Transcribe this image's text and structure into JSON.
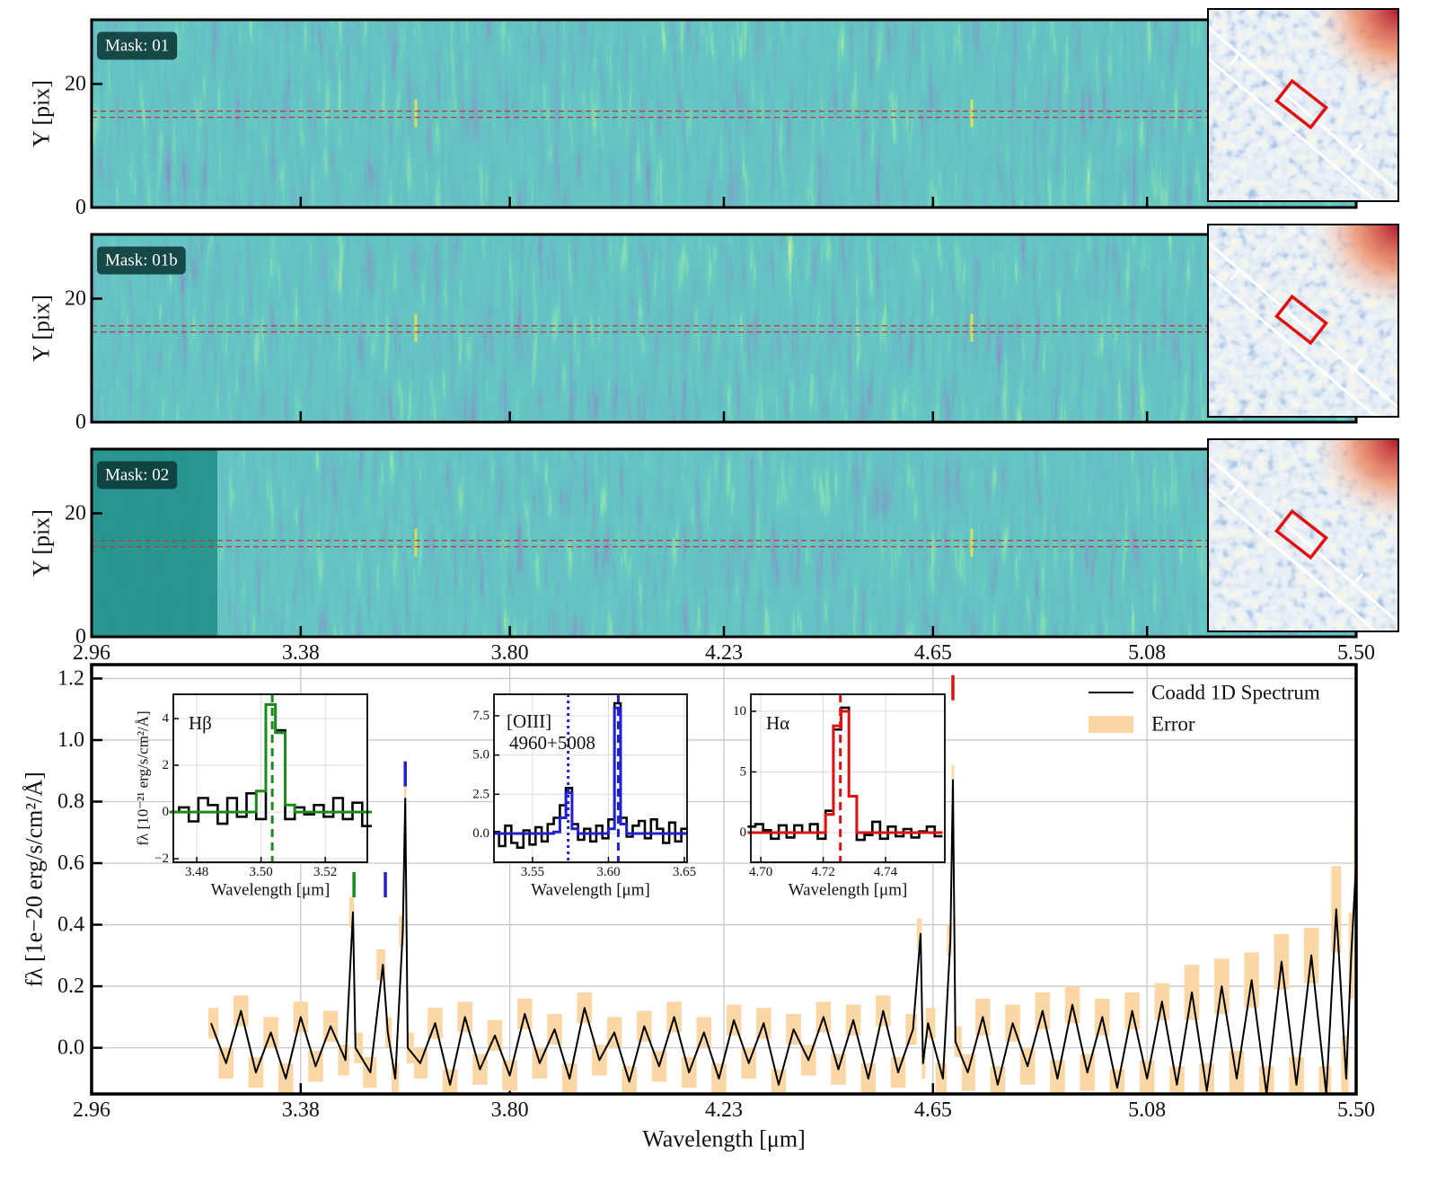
{
  "chart_data": [
    {
      "type": "spectrum2d",
      "ylabel": "Y [pix]",
      "xlim": [
        2.96,
        5.5
      ],
      "xticks": [
        2.96,
        3.38,
        {
          "value": 3.8,
          "label": "3.80"
        },
        4.23,
        4.65,
        5.08,
        {
          "value": 5.5,
          "label": "5.50"
        }
      ],
      "ylim": [
        0,
        30.4
      ],
      "yticks": [
        0,
        20
      ],
      "aperture": [
        14.6,
        15.6
      ],
      "aperture_color": "#c0392b",
      "panels": [
        {
          "label": "Mask: 01"
        },
        {
          "label": "Mask: 01b"
        },
        {
          "label": "Mask: 02"
        }
      ]
    },
    {
      "type": "line",
      "xlabel": "Wavelength [μm]",
      "ylabel": "fλ [1e−20 erg/s/cm²/Å]",
      "xlim": [
        2.96,
        5.5
      ],
      "xticks": [
        2.96,
        3.38,
        {
          "value": 3.8,
          "label": "3.80"
        },
        4.23,
        4.65,
        5.08,
        {
          "value": 5.5,
          "label": "5.50"
        }
      ],
      "ylim": [
        -0.15,
        1.245
      ],
      "yticks": [
        {
          "value": 0,
          "label": "0.0"
        },
        0.2,
        0.4,
        0.6,
        0.8,
        {
          "value": 1,
          "label": "1.0"
        },
        1.2
      ],
      "grid": true,
      "legend": "upper right",
      "x": [
        3.2,
        3.23,
        3.26,
        3.29,
        3.32,
        3.35,
        3.38,
        3.41,
        3.44,
        3.47,
        3.485,
        3.49,
        3.52,
        3.545,
        3.555,
        3.57,
        3.585,
        3.59,
        3.595,
        3.62,
        3.65,
        3.68,
        3.71,
        3.74,
        3.77,
        3.8,
        3.83,
        3.86,
        3.89,
        3.92,
        3.95,
        3.98,
        4.01,
        4.04,
        4.07,
        4.1,
        4.13,
        4.16,
        4.19,
        4.22,
        4.25,
        4.28,
        4.31,
        4.34,
        4.37,
        4.4,
        4.43,
        4.46,
        4.49,
        4.52,
        4.55,
        4.58,
        4.61,
        4.625,
        4.63,
        4.64,
        4.67,
        4.685,
        4.69,
        4.695,
        4.72,
        4.75,
        4.78,
        4.81,
        4.84,
        4.87,
        4.9,
        4.93,
        4.96,
        4.99,
        5.02,
        5.05,
        5.08,
        5.11,
        5.14,
        5.17,
        5.2,
        5.23,
        5.26,
        5.29,
        5.32,
        5.35,
        5.38,
        5.41,
        5.44,
        5.46,
        5.48,
        5.49,
        5.5
      ],
      "series": [
        {
          "name": "Coadd 1D Spectrum",
          "color": "#000000",
          "values": [
            0.08,
            -0.05,
            0.12,
            -0.08,
            0.05,
            -0.1,
            0.1,
            -0.06,
            0.07,
            -0.04,
            0.44,
            0.0,
            -0.08,
            0.27,
            0.05,
            -0.1,
            0.38,
            0.81,
            0.0,
            -0.05,
            0.08,
            -0.12,
            0.1,
            -0.07,
            0.04,
            -0.09,
            0.11,
            -0.05,
            0.06,
            -0.1,
            0.13,
            -0.04,
            0.05,
            -0.11,
            0.07,
            -0.06,
            0.1,
            -0.08,
            0.05,
            -0.1,
            0.09,
            -0.05,
            0.08,
            -0.12,
            0.06,
            -0.04,
            0.1,
            -0.07,
            0.09,
            -0.1,
            0.12,
            -0.08,
            0.06,
            0.37,
            -0.05,
            0.08,
            -0.1,
            0.35,
            0.87,
            0.02,
            -0.08,
            0.1,
            -0.12,
            0.08,
            -0.06,
            0.12,
            -0.1,
            0.14,
            -0.08,
            0.1,
            -0.13,
            0.12,
            -0.1,
            0.15,
            -0.12,
            0.18,
            -0.14,
            0.2,
            -0.1,
            0.22,
            -0.15,
            0.28,
            -0.12,
            0.3,
            -0.15,
            0.45,
            -0.1,
            0.3,
            0.6
          ]
        },
        {
          "name": "Error",
          "color": "#fbd7a5",
          "values": [
            0.05,
            0.05,
            0.05,
            0.05,
            0.05,
            0.05,
            0.05,
            0.05,
            0.05,
            0.05,
            0.05,
            0.05,
            0.05,
            0.05,
            0.05,
            0.05,
            0.05,
            0.05,
            0.05,
            0.05,
            0.05,
            0.05,
            0.05,
            0.05,
            0.05,
            0.05,
            0.05,
            0.05,
            0.05,
            0.05,
            0.05,
            0.05,
            0.05,
            0.05,
            0.05,
            0.05,
            0.05,
            0.05,
            0.05,
            0.05,
            0.05,
            0.05,
            0.05,
            0.05,
            0.05,
            0.05,
            0.05,
            0.05,
            0.05,
            0.05,
            0.05,
            0.05,
            0.05,
            0.05,
            0.05,
            0.05,
            0.05,
            0.05,
            0.05,
            0.05,
            0.06,
            0.06,
            0.06,
            0.06,
            0.06,
            0.06,
            0.06,
            0.06,
            0.06,
            0.06,
            0.06,
            0.06,
            0.06,
            0.06,
            0.06,
            0.09,
            0.09,
            0.09,
            0.09,
            0.09,
            0.09,
            0.09,
            0.09,
            0.09,
            0.09,
            0.14,
            0.14,
            0.14,
            0.14
          ]
        }
      ],
      "markers": [
        {
          "x": 3.487,
          "y": 0.53,
          "color": "#1a8a1a"
        },
        {
          "x": 3.55,
          "y": 0.53,
          "color": "#2020d0"
        },
        {
          "x": 3.59,
          "y": 0.89,
          "color": "#2020d0"
        },
        {
          "x": 4.69,
          "y": 1.17,
          "color": "#e01010"
        }
      ]
    },
    {
      "type": "step",
      "label": "Hβ",
      "xlabel": "Wavelength [μm]",
      "ylabel": "fλ [10⁻²¹ erg/s/cm²/Å]",
      "xlim": [
        3.4727,
        3.5331
      ],
      "xticks": [
        3.48,
        {
          "value": 3.5,
          "label": "3.50"
        },
        3.52
      ],
      "ylim": [
        -2.15,
        5.04
      ],
      "yticks": [
        {
          "value": -2,
          "label": "−2"
        },
        0,
        2,
        4
      ],
      "grid": true,
      "x": [
        3.473,
        3.476,
        3.479,
        3.482,
        3.485,
        3.488,
        3.491,
        3.494,
        3.497,
        3.5,
        3.503,
        3.506,
        3.509,
        3.512,
        3.515,
        3.518,
        3.521,
        3.524,
        3.527,
        3.53,
        3.533
      ],
      "series": [
        {
          "color": "#000000",
          "values": [
            0.0,
            0.2,
            -0.4,
            0.6,
            0.3,
            -0.5,
            0.6,
            -0.2,
            0.8,
            -0.3,
            4.6,
            3.5,
            -0.3,
            0.2,
            -0.1,
            0.3,
            -0.2,
            0.6,
            -0.3,
            0.4,
            -0.6
          ]
        },
        {
          "color": "#1a8a1a",
          "values": [
            0,
            0,
            0,
            0,
            0,
            0,
            0,
            0,
            0,
            0.9,
            4.6,
            3.4,
            0.3,
            0,
            0,
            0,
            0,
            0,
            0,
            0,
            0
          ]
        }
      ],
      "vlines": [
        {
          "x": 3.5035,
          "color": "#1a8a1a",
          "dash": "9 6"
        }
      ]
    },
    {
      "type": "step",
      "label": [
        "[OIII]",
        "4960+5008"
      ],
      "xlabel": "Wavelength [μm]",
      "xlim": [
        3.5246,
        3.6518
      ],
      "xticks": [
        3.55,
        {
          "value": 3.6,
          "label": "3.60"
        },
        3.65
      ],
      "ylim": [
        -1.83,
        8.87
      ],
      "yticks": [
        {
          "value": 0,
          "label": "0.0"
        },
        2.5,
        {
          "value": 5,
          "label": "5.0"
        },
        7.5
      ],
      "grid": true,
      "x": [
        3.526,
        3.53,
        3.534,
        3.538,
        3.542,
        3.546,
        3.55,
        3.554,
        3.558,
        3.562,
        3.566,
        3.57,
        3.574,
        3.578,
        3.582,
        3.586,
        3.59,
        3.594,
        3.598,
        3.602,
        3.606,
        3.61,
        3.614,
        3.618,
        3.622,
        3.626,
        3.63,
        3.634,
        3.638,
        3.642,
        3.646,
        3.65
      ],
      "series": [
        {
          "color": "#000000",
          "values": [
            0.1,
            -0.8,
            0.5,
            -0.6,
            -0.9,
            0.2,
            -0.7,
            0.4,
            -0.5,
            0.6,
            1.0,
            1.8,
            2.9,
            0.6,
            -0.4,
            0.3,
            -0.5,
            0.5,
            -0.3,
            0.9,
            8.3,
            1.0,
            -0.2,
            0.5,
            0.8,
            -0.3,
            0.9,
            0.3,
            -0.6,
            0.7,
            -0.5,
            0.3
          ]
        },
        {
          "color": "#2020d0",
          "values": [
            0,
            0,
            0,
            0,
            0,
            0,
            0,
            0,
            0,
            0,
            0.1,
            1.0,
            2.6,
            0.3,
            0,
            0,
            0,
            0,
            0,
            0.3,
            8.0,
            0.6,
            0,
            0,
            0,
            0,
            0,
            0,
            0,
            0,
            0,
            0
          ]
        }
      ],
      "vlines": [
        {
          "x": 3.5735,
          "color": "#2020d0",
          "dash": "3 4"
        },
        {
          "x": 3.6065,
          "color": "#2020d0",
          "dash": "9 6"
        }
      ]
    },
    {
      "type": "step",
      "label": "Hα",
      "xlabel": "Wavelength [μm]",
      "xlim": [
        4.6968,
        4.759
      ],
      "xticks": [
        {
          "value": 4.7,
          "label": "4.70"
        },
        4.72,
        4.74
      ],
      "ylim": [
        -2.44,
        11.4
      ],
      "yticks": [
        0,
        5,
        10
      ],
      "grid": true,
      "x": [
        4.697,
        4.6995,
        4.702,
        4.7045,
        4.707,
        4.7095,
        4.712,
        4.7145,
        4.717,
        4.7195,
        4.722,
        4.7245,
        4.727,
        4.7295,
        4.732,
        4.7345,
        4.737,
        4.7395,
        4.742,
        4.7445,
        4.747,
        4.7495,
        4.752,
        4.7545,
        4.757
      ],
      "series": [
        {
          "color": "#000000",
          "values": [
            0.5,
            0.7,
            0.2,
            -0.5,
            0.6,
            -0.4,
            0.6,
            0.0,
            0.7,
            -0.5,
            1.8,
            8.5,
            10.3,
            3.0,
            -0.6,
            -0.2,
            0.9,
            -0.5,
            0.5,
            -0.3,
            0.3,
            -0.4,
            0.1,
            0.5,
            -0.3
          ]
        },
        {
          "color": "#e01010",
          "values": [
            0,
            0,
            0,
            0,
            0,
            0,
            0,
            0,
            0,
            0,
            1.5,
            8.8,
            10.0,
            3.0,
            0,
            0,
            0,
            0,
            0,
            0,
            0,
            0,
            0,
            0,
            0
          ]
        }
      ],
      "vlines": [
        {
          "x": 4.7255,
          "color": "#e01010",
          "dash": "9 6"
        }
      ]
    }
  ]
}
